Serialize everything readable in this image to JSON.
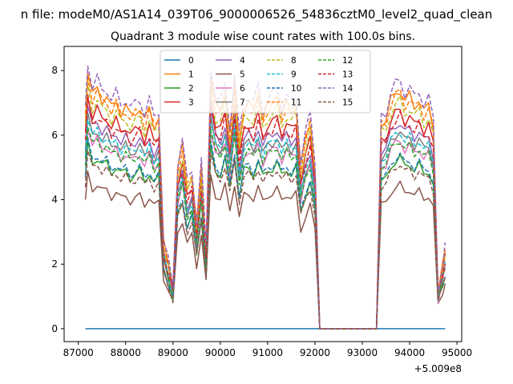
{
  "suptitle": "n file: modeM0/AS1A14_039T06_9000006526_54836cztM0_level2_quad_clean",
  "chart_data": {
    "type": "line",
    "title": "Quadrant 3 module wise count rates with 100.0s bins.",
    "xlabel": "",
    "ylabel": "",
    "x_offset_label": "+5.009e8",
    "xlim": [
      86700,
      95100
    ],
    "ylim": [
      -0.4,
      8.75
    ],
    "xticks": [
      87000,
      88000,
      89000,
      90000,
      91000,
      92000,
      93000,
      94000,
      95000
    ],
    "xtick_labels": [
      "87000",
      "88000",
      "89000",
      "90000",
      "91000",
      "92000",
      "93000",
      "94000",
      "95000"
    ],
    "yticks": [
      0,
      2,
      4,
      6,
      8
    ],
    "ytick_labels": [
      "0",
      "2",
      "4",
      "6",
      "8"
    ],
    "legend_position": "upper-center",
    "legend_columns": 4,
    "base_profile": {
      "x": [
        87150,
        87200,
        87300,
        87400,
        87500,
        87600,
        87700,
        87800,
        87900,
        88000,
        88100,
        88200,
        88300,
        88400,
        88500,
        88600,
        88700,
        88800,
        88900,
        89000,
        89100,
        89200,
        89300,
        89400,
        89500,
        89600,
        89700,
        89800,
        89900,
        90000,
        90100,
        90200,
        90300,
        90400,
        90500,
        90600,
        90700,
        90800,
        90900,
        91000,
        91100,
        91200,
        91300,
        91400,
        91500,
        91600,
        91700,
        91800,
        91900,
        92000,
        92100,
        92200,
        92300,
        92400,
        92500,
        92600,
        92700,
        92800,
        92900,
        93000,
        93100,
        93200,
        93300,
        93400,
        93500,
        93600,
        93700,
        93800,
        93900,
        94000,
        94100,
        94200,
        94300,
        94400,
        94500,
        94600,
        94700,
        94750
      ],
      "factor": [
        0.82,
        1.0,
        0.9,
        0.93,
        0.89,
        0.9,
        0.85,
        0.88,
        0.84,
        0.86,
        0.82,
        0.84,
        0.86,
        0.8,
        0.85,
        0.79,
        0.82,
        0.33,
        0.25,
        0.16,
        0.62,
        0.7,
        0.55,
        0.6,
        0.4,
        0.62,
        0.3,
        0.98,
        0.86,
        0.84,
        0.92,
        0.76,
        0.94,
        0.72,
        0.86,
        0.87,
        0.84,
        0.91,
        0.82,
        0.86,
        0.87,
        0.9,
        0.83,
        0.87,
        0.84,
        0.87,
        0.63,
        0.73,
        0.8,
        0.63,
        0.0,
        0.0,
        0.0,
        0.0,
        0.0,
        0.0,
        0.0,
        0.0,
        0.0,
        0.0,
        0.0,
        0.0,
        0.0,
        0.8,
        0.81,
        0.88,
        0.91,
        0.93,
        0.88,
        0.9,
        0.86,
        0.89,
        0.84,
        0.86,
        0.78,
        0.15,
        0.24,
        0.3
      ]
    },
    "series": [
      {
        "name": "0",
        "color": "#1f77b4",
        "dash": "solid",
        "peak": 0.0
      },
      {
        "name": "1",
        "color": "#ff7f0e",
        "dash": "solid",
        "peak": 8.0
      },
      {
        "name": "2",
        "color": "#2ca02c",
        "dash": "solid",
        "peak": 5.7
      },
      {
        "name": "3",
        "color": "#d62728",
        "dash": "solid",
        "peak": 7.3
      },
      {
        "name": "4",
        "color": "#9467bd",
        "dash": "solid",
        "peak": 6.9
      },
      {
        "name": "5",
        "color": "#8c564b",
        "dash": "solid",
        "peak": 4.8
      },
      {
        "name": "6",
        "color": "#e377c2",
        "dash": "solid",
        "peak": 6.3
      },
      {
        "name": "7",
        "color": "#7f7f7f",
        "dash": "solid",
        "peak": 6.6
      },
      {
        "name": "8",
        "color": "#bcbd22",
        "dash": "dashed",
        "peak": 7.6
      },
      {
        "name": "9",
        "color": "#17becf",
        "dash": "dashed",
        "peak": 6.6
      },
      {
        "name": "10",
        "color": "#1f77b4",
        "dash": "dashed",
        "peak": 5.8
      },
      {
        "name": "11",
        "color": "#ff7f0e",
        "dash": "dashed",
        "peak": 7.9
      },
      {
        "name": "12",
        "color": "#2ca02c",
        "dash": "dashed",
        "peak": 6.3
      },
      {
        "name": "13",
        "color": "#d62728",
        "dash": "dashed",
        "peak": 7.1
      },
      {
        "name": "14",
        "color": "#9467bd",
        "dash": "dashed",
        "peak": 8.3
      },
      {
        "name": "15",
        "color": "#8c564b",
        "dash": "dashed",
        "peak": 5.5
      }
    ]
  }
}
